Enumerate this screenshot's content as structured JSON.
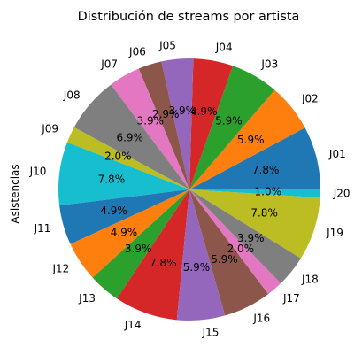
{
  "chart_data": {
    "type": "pie",
    "title": "Distribución de streams por artista",
    "ylabel": "Asistencias",
    "start_angle_deg": 0,
    "direction": "counterclockwise",
    "slices": [
      {
        "label": "J01",
        "value": 7.8,
        "pct": "7.8%",
        "color": "#1f77b4"
      },
      {
        "label": "J02",
        "value": 5.9,
        "pct": "5.9%",
        "color": "#ff7f0e"
      },
      {
        "label": "J03",
        "value": 5.9,
        "pct": "5.9%",
        "color": "#2ca02c"
      },
      {
        "label": "J04",
        "value": 4.9,
        "pct": "4.9%",
        "color": "#d62728"
      },
      {
        "label": "J05",
        "value": 3.9,
        "pct": "3.9%",
        "color": "#9467bd"
      },
      {
        "label": "J06",
        "value": 2.9,
        "pct": "2.9%",
        "color": "#8c564b"
      },
      {
        "label": "J07",
        "value": 3.9,
        "pct": "3.9%",
        "color": "#e377c2"
      },
      {
        "label": "J08",
        "value": 6.9,
        "pct": "6.9%",
        "color": "#7f7f7f"
      },
      {
        "label": "J09",
        "value": 2.0,
        "pct": "2.0%",
        "color": "#bcbd22"
      },
      {
        "label": "J10",
        "value": 7.8,
        "pct": "7.8%",
        "color": "#17becf"
      },
      {
        "label": "J11",
        "value": 4.9,
        "pct": "4.9%",
        "color": "#1f77b4"
      },
      {
        "label": "J12",
        "value": 4.9,
        "pct": "4.9%",
        "color": "#ff7f0e"
      },
      {
        "label": "J13",
        "value": 3.9,
        "pct": "3.9%",
        "color": "#2ca02c"
      },
      {
        "label": "J14",
        "value": 7.8,
        "pct": "7.8%",
        "color": "#d62728"
      },
      {
        "label": "J15",
        "value": 5.9,
        "pct": "5.9%",
        "color": "#9467bd"
      },
      {
        "label": "J16",
        "value": 5.9,
        "pct": "5.9%",
        "color": "#8c564b"
      },
      {
        "label": "J17",
        "value": 2.0,
        "pct": "2.0%",
        "color": "#e377c2"
      },
      {
        "label": "J18",
        "value": 3.9,
        "pct": "3.9%",
        "color": "#7f7f7f"
      },
      {
        "label": "J19",
        "value": 7.8,
        "pct": "7.8%",
        "color": "#bcbd22"
      },
      {
        "label": "J20",
        "value": 1.0,
        "pct": "1.0%",
        "color": "#17becf"
      }
    ]
  }
}
